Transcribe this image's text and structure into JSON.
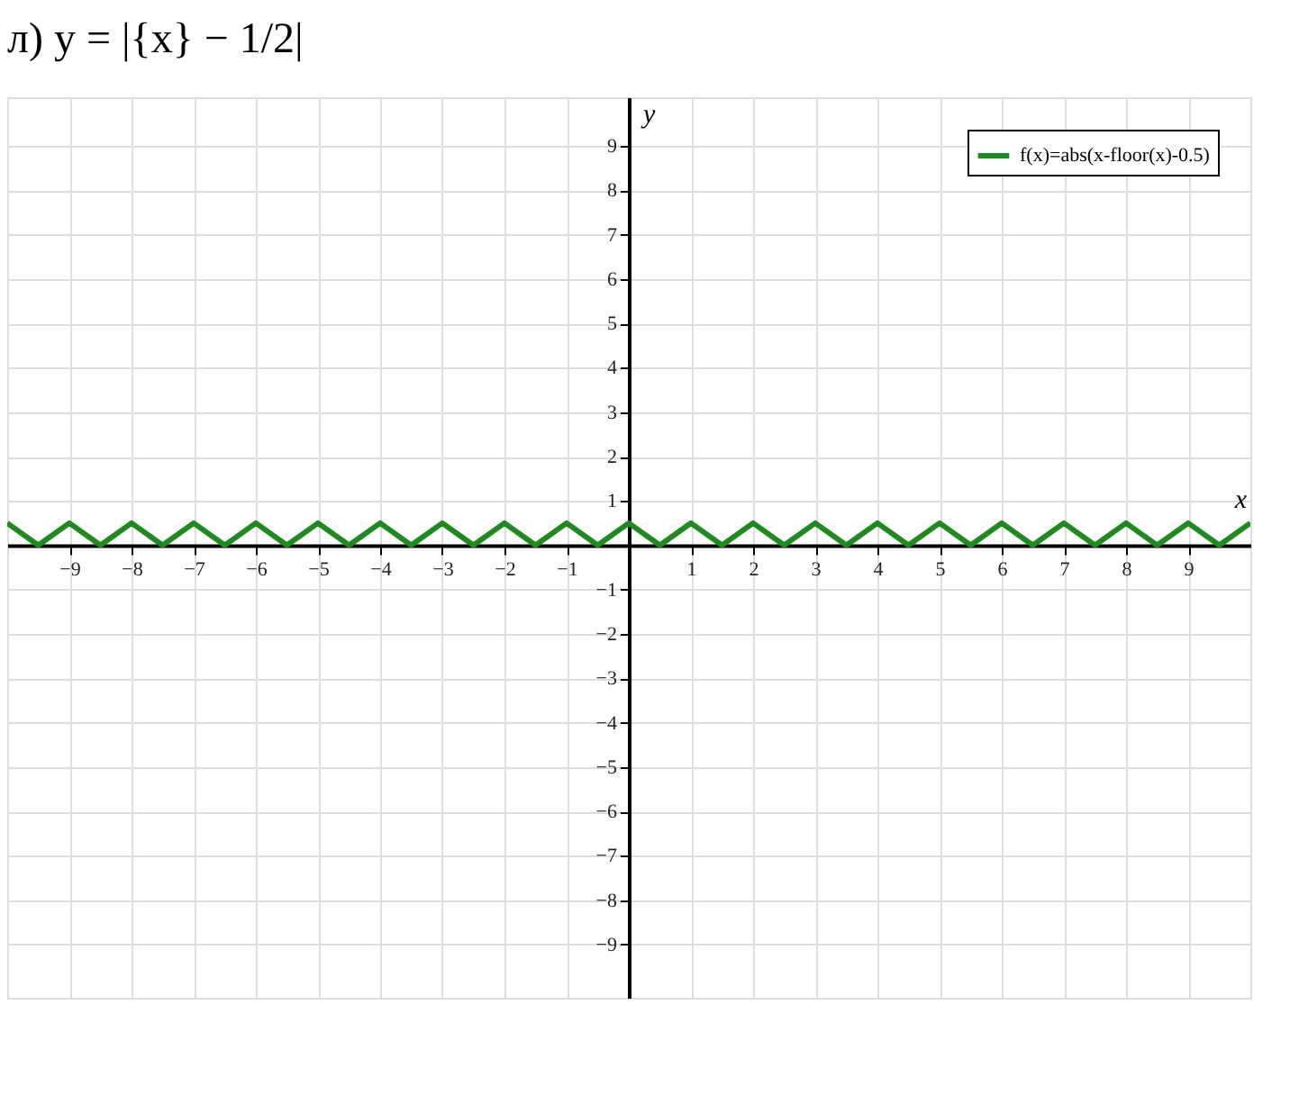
{
  "chart_data": {
    "type": "line",
    "title": "л) y = |{x} − 1/2|",
    "xlabel": "x",
    "ylabel": "y",
    "x": [
      -10,
      -9.5,
      -9,
      -8.5,
      -8,
      -7.5,
      -7,
      -6.5,
      -6,
      -5.5,
      -5,
      -4.5,
      -4,
      -3.5,
      -3,
      -2.5,
      -2,
      -1.5,
      -1,
      -0.5,
      0,
      0.5,
      1,
      1.5,
      2,
      2.5,
      3,
      3.5,
      4,
      4.5,
      5,
      5.5,
      6,
      6.5,
      7,
      7.5,
      8,
      8.5,
      9,
      9.5,
      10
    ],
    "series": [
      {
        "name": "f(x)=abs(x-floor(x)-0.5)",
        "color": "#1f8a1f",
        "values": [
          0.5,
          0,
          0.5,
          0,
          0.5,
          0,
          0.5,
          0,
          0.5,
          0,
          0.5,
          0,
          0.5,
          0,
          0.5,
          0,
          0.5,
          0,
          0.5,
          0,
          0.5,
          0,
          0.5,
          0,
          0.5,
          0,
          0.5,
          0,
          0.5,
          0,
          0.5,
          0,
          0.5,
          0,
          0.5,
          0,
          0.5,
          0,
          0.5,
          0,
          0.5
        ]
      }
    ],
    "xlim": [
      -10,
      10
    ],
    "ylim": [
      -10.2,
      10.1
    ],
    "xticks": [
      -9,
      -8,
      -7,
      -6,
      -5,
      -4,
      -3,
      -2,
      -1,
      1,
      2,
      3,
      4,
      5,
      6,
      7,
      8,
      9
    ],
    "yticks": [
      -9,
      -8,
      -7,
      -6,
      -5,
      -4,
      -3,
      -2,
      -1,
      1,
      2,
      3,
      4,
      5,
      6,
      7,
      8,
      9
    ],
    "grid": true,
    "legend": "top right",
    "marker": "none",
    "line_style": "solid"
  }
}
